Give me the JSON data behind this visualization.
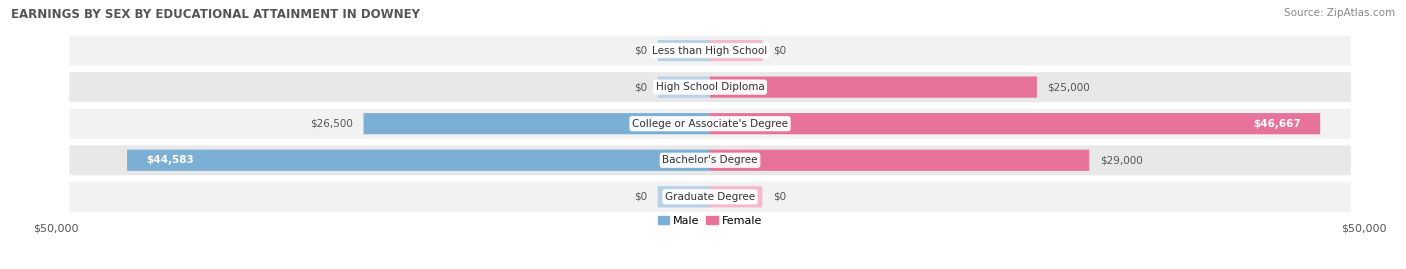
{
  "title": "EARNINGS BY SEX BY EDUCATIONAL ATTAINMENT IN DOWNEY",
  "source": "Source: ZipAtlas.com",
  "categories": [
    "Less than High School",
    "High School Diploma",
    "College or Associate's Degree",
    "Bachelor's Degree",
    "Graduate Degree"
  ],
  "male_values": [
    0,
    0,
    26500,
    44583,
    0
  ],
  "female_values": [
    0,
    25000,
    46667,
    29000,
    0
  ],
  "male_color": "#7bafd4",
  "female_color": "#e8739a",
  "male_zero_color": "#b8d0e8",
  "female_zero_color": "#f5b8cc",
  "bar_height": 0.58,
  "zero_bar_width": 4000,
  "xlim": 50000,
  "background_color": "#ffffff",
  "row_color_odd": "#f2f2f2",
  "row_color_even": "#e8e8e8",
  "title_fontsize": 8.5,
  "source_fontsize": 7.5,
  "category_fontsize": 7.5,
  "value_fontsize": 7.5,
  "tick_fontsize": 8,
  "legend_fontsize": 8
}
